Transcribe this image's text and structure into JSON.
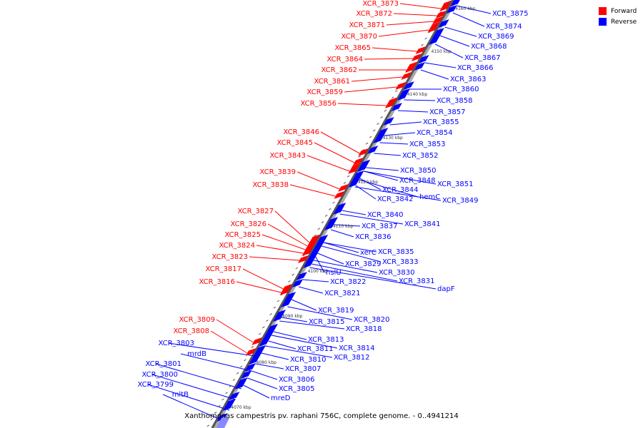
{
  "caption": "Xanthomonas campestris pv. raphani 756C, complete genome. - 0..4941214",
  "legend": [
    {
      "label": "Forward",
      "color": "#ff0000"
    },
    {
      "label": "Reverse",
      "color": "#0000ff"
    }
  ],
  "ticks": [
    "4070 kbp",
    "4080 kbp",
    "4090 kbp",
    "4100 kbp",
    "4110 kbp",
    "4120 kbp",
    "4130 kbp",
    "4140 kbp",
    "4150 kbp",
    "4160 kbp"
  ],
  "forward_labels": [
    "XCR_3873",
    "XCR_3872",
    "XCR_3871",
    "XCR_3870",
    "XCR_3865",
    "XCR_3864",
    "XCR_3862",
    "XCR_3861",
    "XCR_3859",
    "XCR_3856",
    "XCR_3846",
    "XCR_3845",
    "XCR_3843",
    "XCR_3839",
    "XCR_3838",
    "XCR_3827",
    "XCR_3826",
    "XCR_3825",
    "XCR_3824",
    "XCR_3823",
    "XCR_3817",
    "XCR_3816",
    "XCR_3809",
    "XCR_3808"
  ],
  "reverse_labels": [
    "XCR_3875",
    "XCR_3874",
    "XCR_3869",
    "XCR_3868",
    "XCR_3867",
    "XCR_3866",
    "XCR_3863",
    "XCR_3860",
    "XCR_3858",
    "XCR_3857",
    "XCR_3855",
    "XCR_3854",
    "XCR_3853",
    "XCR_3852",
    "XCR_3850",
    "XCR_3848",
    "XCR_3851",
    "XCR_3844",
    "hemC",
    "XCR_3842",
    "XCR_3849",
    "XCR_3840",
    "XCR_3841",
    "XCR_3837",
    "XCR_3836",
    "xerC",
    "XCR_3835",
    "XCR_3833",
    "XCR_3829",
    "hslU",
    "XCR_3830",
    "XCR_3831",
    "dapF",
    "XCR_3822",
    "XCR_3821",
    "XCR_3819",
    "XCR_3820",
    "XCR_3815",
    "XCR_3818",
    "XCR_3813",
    "XCR_3814",
    "XCR_3811",
    "XCR_3812",
    "XCR_3810",
    "XCR_3807",
    "XCR_3806",
    "XCR_3805",
    "mreD",
    "XCR_3803",
    "mrdB",
    "XCR_3801",
    "XCR_3800",
    "XCR_3799",
    "mltB"
  ]
}
